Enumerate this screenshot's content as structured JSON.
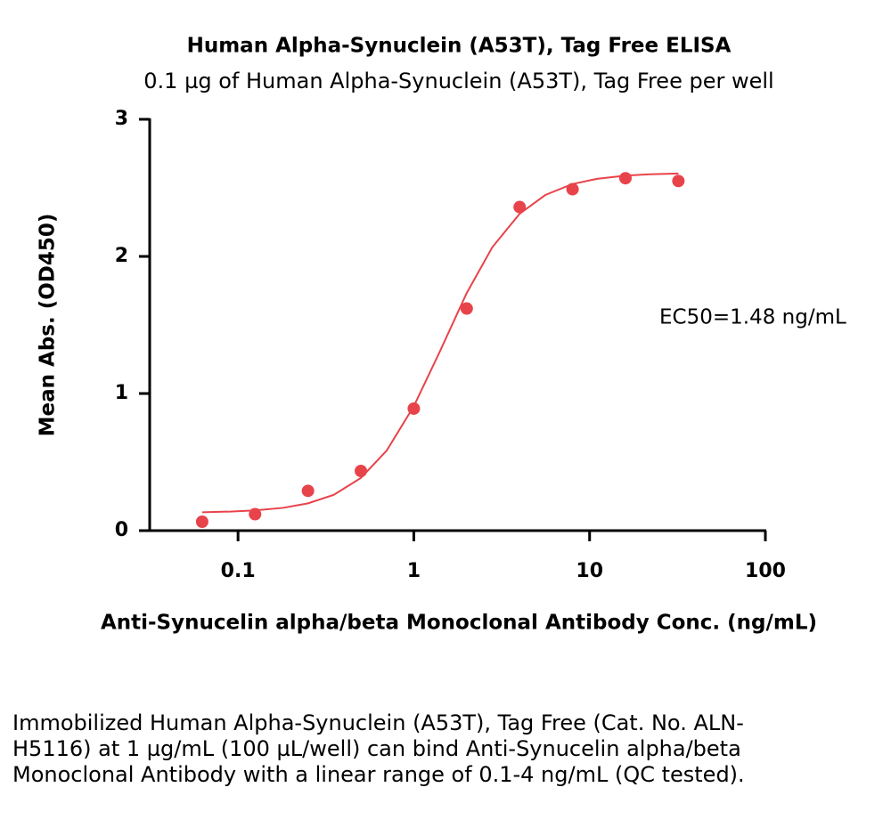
{
  "chart_data": {
    "type": "scatter",
    "title": "Human Alpha-Synuclein (A53T), Tag Free ELISA",
    "subtitle": "0.1 µg of Human Alpha-Synuclein (A53T), Tag Free per well",
    "x_label": "Anti-Synucelin alpha/beta Monoclonal Antibody Conc. (ng/mL)",
    "y_label": "Mean Abs. (OD450)",
    "annotation": "EC50=1.48 ng/mL",
    "x_scale": "log",
    "xlim": [
      0.03,
      100
    ],
    "xticks": [
      0.1,
      1,
      10,
      100
    ],
    "ylim": [
      0,
      3
    ],
    "yticks": [
      0,
      1,
      2,
      3
    ],
    "series": [
      {
        "style": "points",
        "color": "#e8434a",
        "x": [
          0.0625,
          0.125,
          0.25,
          0.5,
          1,
          2,
          4,
          8,
          16,
          32
        ],
        "values": [
          0.065,
          0.12,
          0.29,
          0.435,
          0.89,
          1.62,
          2.36,
          2.49,
          2.57,
          2.55
        ]
      },
      {
        "style": "line",
        "color": "#e8434a",
        "x": [
          0.0625,
          0.09,
          0.125,
          0.18,
          0.25,
          0.35,
          0.5,
          0.7,
          1,
          1.4,
          2,
          2.8,
          4,
          5.6,
          8,
          11,
          16,
          22,
          32
        ],
        "values": [
          0.134,
          0.139,
          0.148,
          0.166,
          0.199,
          0.261,
          0.384,
          0.583,
          0.907,
          1.301,
          1.733,
          2.068,
          2.311,
          2.448,
          2.528,
          2.566,
          2.589,
          2.599,
          2.605
        ]
      }
    ]
  },
  "caption": "Immobilized Human Alpha-Synuclein (A53T), Tag Free (Cat. No. ALN-H5116) at 1 µg/mL (100 µL/well) can bind Anti-Synucelin alpha/beta Monoclonal Antibody with a linear range of 0.1-4 ng/mL (QC tested)."
}
